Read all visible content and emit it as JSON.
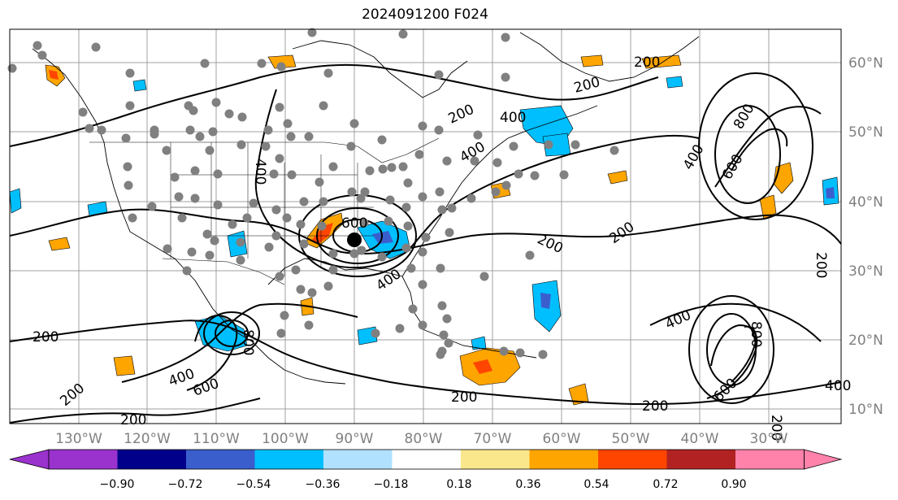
{
  "title": "2024091200 F024",
  "map": {
    "lon_labels": [
      "130°W",
      "120°W",
      "110°W",
      "100°W",
      "90°W",
      "80°W",
      "70°W",
      "60°W",
      "50°W",
      "40°W",
      "30°W"
    ],
    "lat_labels": [
      "60°N",
      "50°N",
      "40°N",
      "30°N",
      "20°N",
      "10°N"
    ],
    "contour_labels": [
      "200",
      "200",
      "200",
      "200",
      "200",
      "200",
      "200",
      "200",
      "200",
      "200",
      "200",
      "400",
      "400",
      "400",
      "400",
      "400",
      "400",
      "400",
      "400",
      "600",
      "600",
      "600",
      "600",
      "800",
      "800",
      "800",
      "200"
    ]
  },
  "colorbar": {
    "labels": [
      "−0.90",
      "−0.72",
      "−0.54",
      "−0.36",
      "−0.18",
      "0.18",
      "0.36",
      "0.54",
      "0.72",
      "0.90"
    ],
    "colors": [
      "#9a32cd",
      "#00008b",
      "#3a5fcd",
      "#00bfff",
      "#b0e2ff",
      "#ffffff",
      "#fbe78b",
      "#ffa500",
      "#ff4500",
      "#b22222",
      "#ff82ab"
    ]
  }
}
